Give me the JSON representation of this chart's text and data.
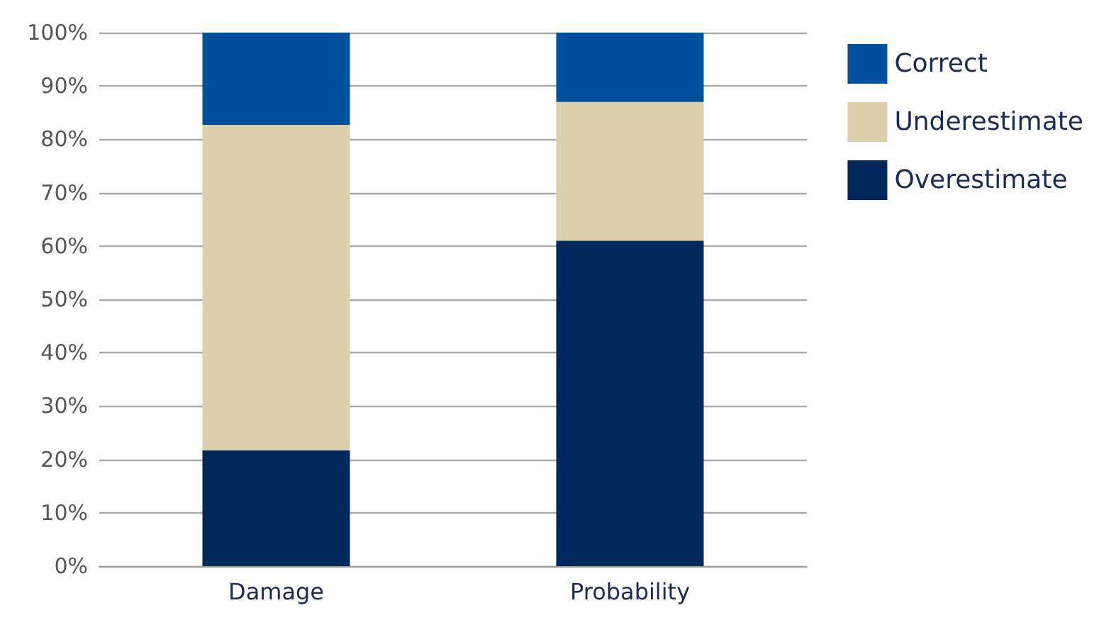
{
  "chart_data": {
    "type": "bar",
    "stacked": true,
    "categories": [
      "Damage",
      "Probability"
    ],
    "series": [
      {
        "name": "Overestimate",
        "color": "#00285a",
        "values": [
          21.7,
          61
        ]
      },
      {
        "name": "Underestimate",
        "color": "#dccfae",
        "values": [
          61,
          26
        ]
      },
      {
        "name": "Correct",
        "color": "#0050a0",
        "values": [
          17.3,
          13
        ]
      }
    ],
    "ylim": [
      0,
      100
    ],
    "yticks": [
      {
        "value": 0,
        "label": "0%"
      },
      {
        "value": 10,
        "label": "10%"
      },
      {
        "value": 20,
        "label": "20%"
      },
      {
        "value": 30,
        "label": "30%"
      },
      {
        "value": 40,
        "label": "40%"
      },
      {
        "value": 50,
        "label": "50%"
      },
      {
        "value": 60,
        "label": "60%"
      },
      {
        "value": 70,
        "label": "70%"
      },
      {
        "value": 80,
        "label": "80%"
      },
      {
        "value": 90,
        "label": "90%"
      },
      {
        "value": 100,
        "label": "100%"
      }
    ],
    "grid": "y",
    "legend": "top right"
  }
}
